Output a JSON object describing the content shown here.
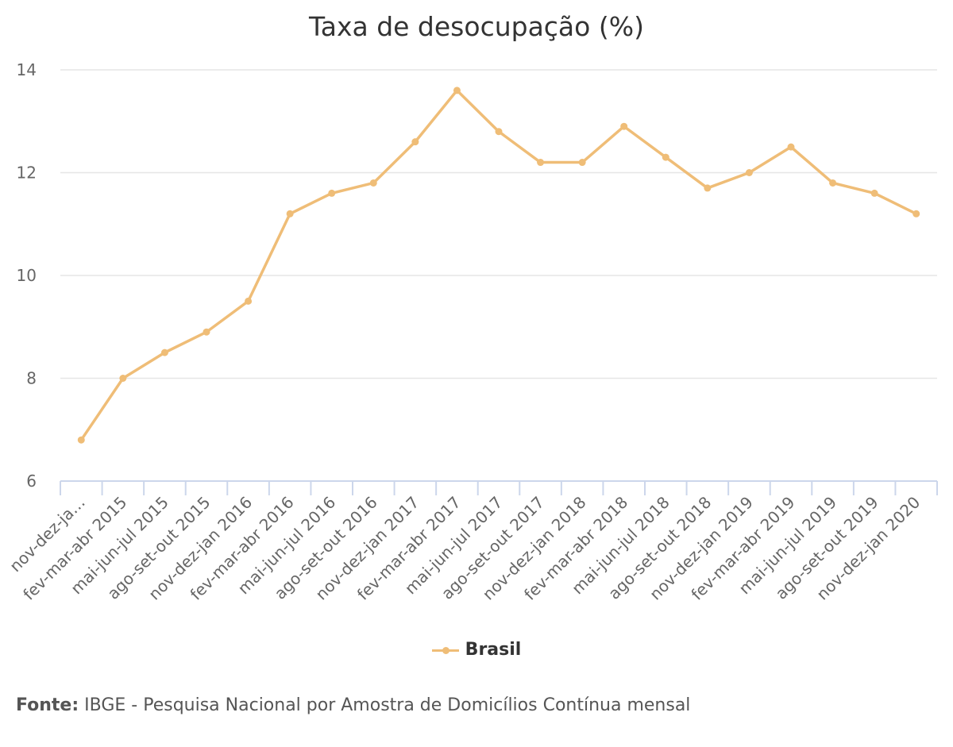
{
  "chart_data": {
    "type": "line",
    "title": "Taxa de desocupação (%)",
    "xlabel": "",
    "ylabel": "",
    "categories": [
      "nov-dez-ja…",
      "fev-mar-abr 2015",
      "mai-jun-jul 2015",
      "ago-set-out 2015",
      "nov-dez-jan 2016",
      "fev-mar-abr 2016",
      "mai-jun-jul 2016",
      "ago-set-out 2016",
      "nov-dez-jan 2017",
      "fev-mar-abr 2017",
      "mai-jun-jul 2017",
      "ago-set-out 2017",
      "nov-dez-jan 2018",
      "fev-mar-abr 2018",
      "mai-jun-jul 2018",
      "ago-set-out 2018",
      "nov-dez-jan 2019",
      "fev-mar-abr 2019",
      "mai-jun-jul 2019",
      "ago-set-out 2019",
      "nov-dez-jan 2020"
    ],
    "series": [
      {
        "name": "Brasil",
        "color": "#efbd77",
        "values": [
          6.8,
          8.0,
          8.5,
          8.9,
          9.5,
          11.2,
          11.6,
          11.8,
          12.6,
          13.6,
          12.8,
          12.2,
          12.2,
          12.9,
          12.3,
          11.7,
          12.0,
          12.5,
          11.8,
          11.6,
          11.2
        ]
      }
    ],
    "ylim": [
      6,
      14
    ],
    "yticks": [
      6,
      8,
      10,
      12,
      14
    ],
    "grid": true,
    "legend_position": "bottom-center"
  },
  "legend": {
    "label": "Brasil"
  },
  "source": {
    "prefix": "Fonte:",
    "text": " IBGE - Pesquisa Nacional por Amostra de Domicílios Contínua mensal"
  },
  "colors": {
    "series": "#efbd77",
    "grid": "#e6e6e6",
    "axis": "#ccd6eb",
    "tick_label": "#666666"
  }
}
